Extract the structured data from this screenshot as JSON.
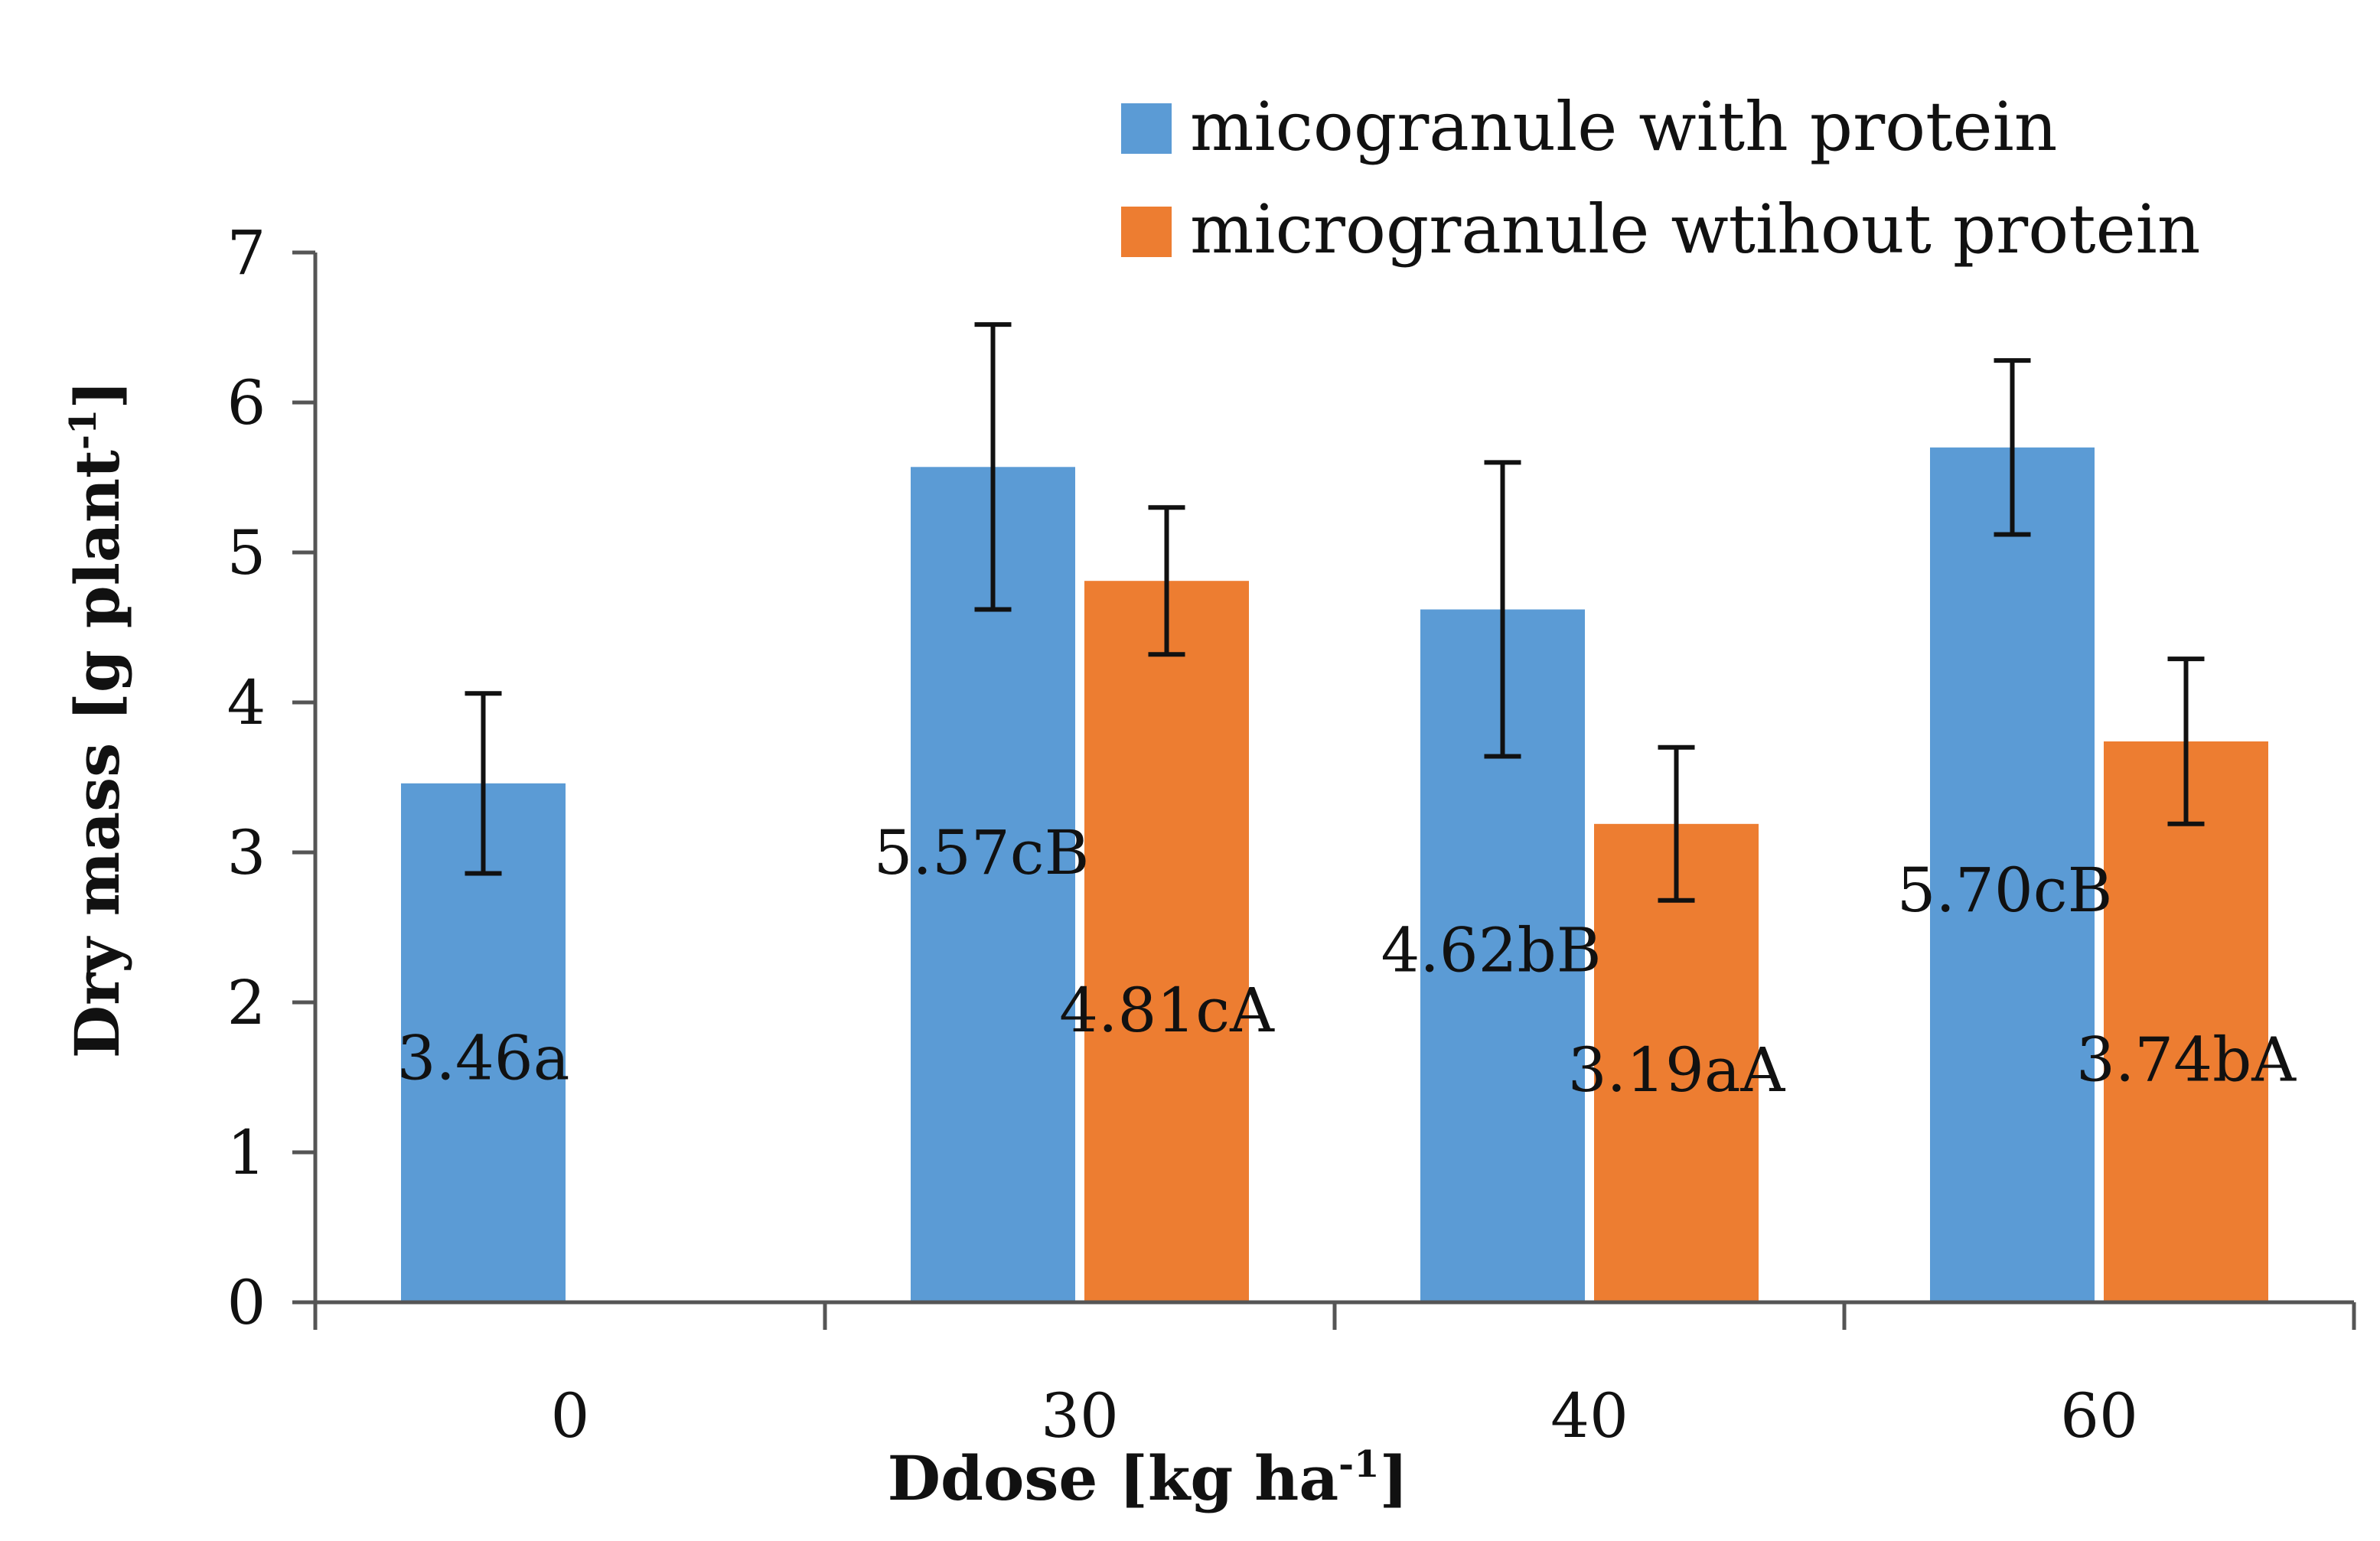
{
  "chart_data": {
    "type": "bar",
    "title": "",
    "xlabel": "Ddose [kg ha",
    "xlabel_sup": "-1",
    "xlabel_end": "]",
    "ylabel": "Dry mass [g plant",
    "ylabel_sup": "-1",
    "ylabel_end": "]",
    "categories": [
      "0",
      "30",
      "40",
      "60"
    ],
    "ylim": [
      0,
      7
    ],
    "yticks": [
      "0",
      "1",
      "2",
      "3",
      "4",
      "5",
      "6",
      "7"
    ],
    "grid": false,
    "legend_position": "top-right",
    "series": [
      {
        "name": "micogranule with protein",
        "color": "#5b9bd5",
        "values": [
          3.46,
          5.57,
          4.62,
          5.7
        ],
        "errors": [
          0.6,
          0.95,
          0.98,
          0.58
        ],
        "labels": [
          "3.46a",
          "5.57cB",
          "4.62bB",
          "5.70cB"
        ]
      },
      {
        "name": "microgranule wtihout protein",
        "color": "#ed7d31",
        "values": [
          null,
          4.81,
          3.19,
          3.74
        ],
        "errors": [
          null,
          0.49,
          0.51,
          0.55
        ],
        "labels": [
          "",
          "4.81cA",
          "3.19aA",
          "3.74bA"
        ]
      }
    ]
  }
}
